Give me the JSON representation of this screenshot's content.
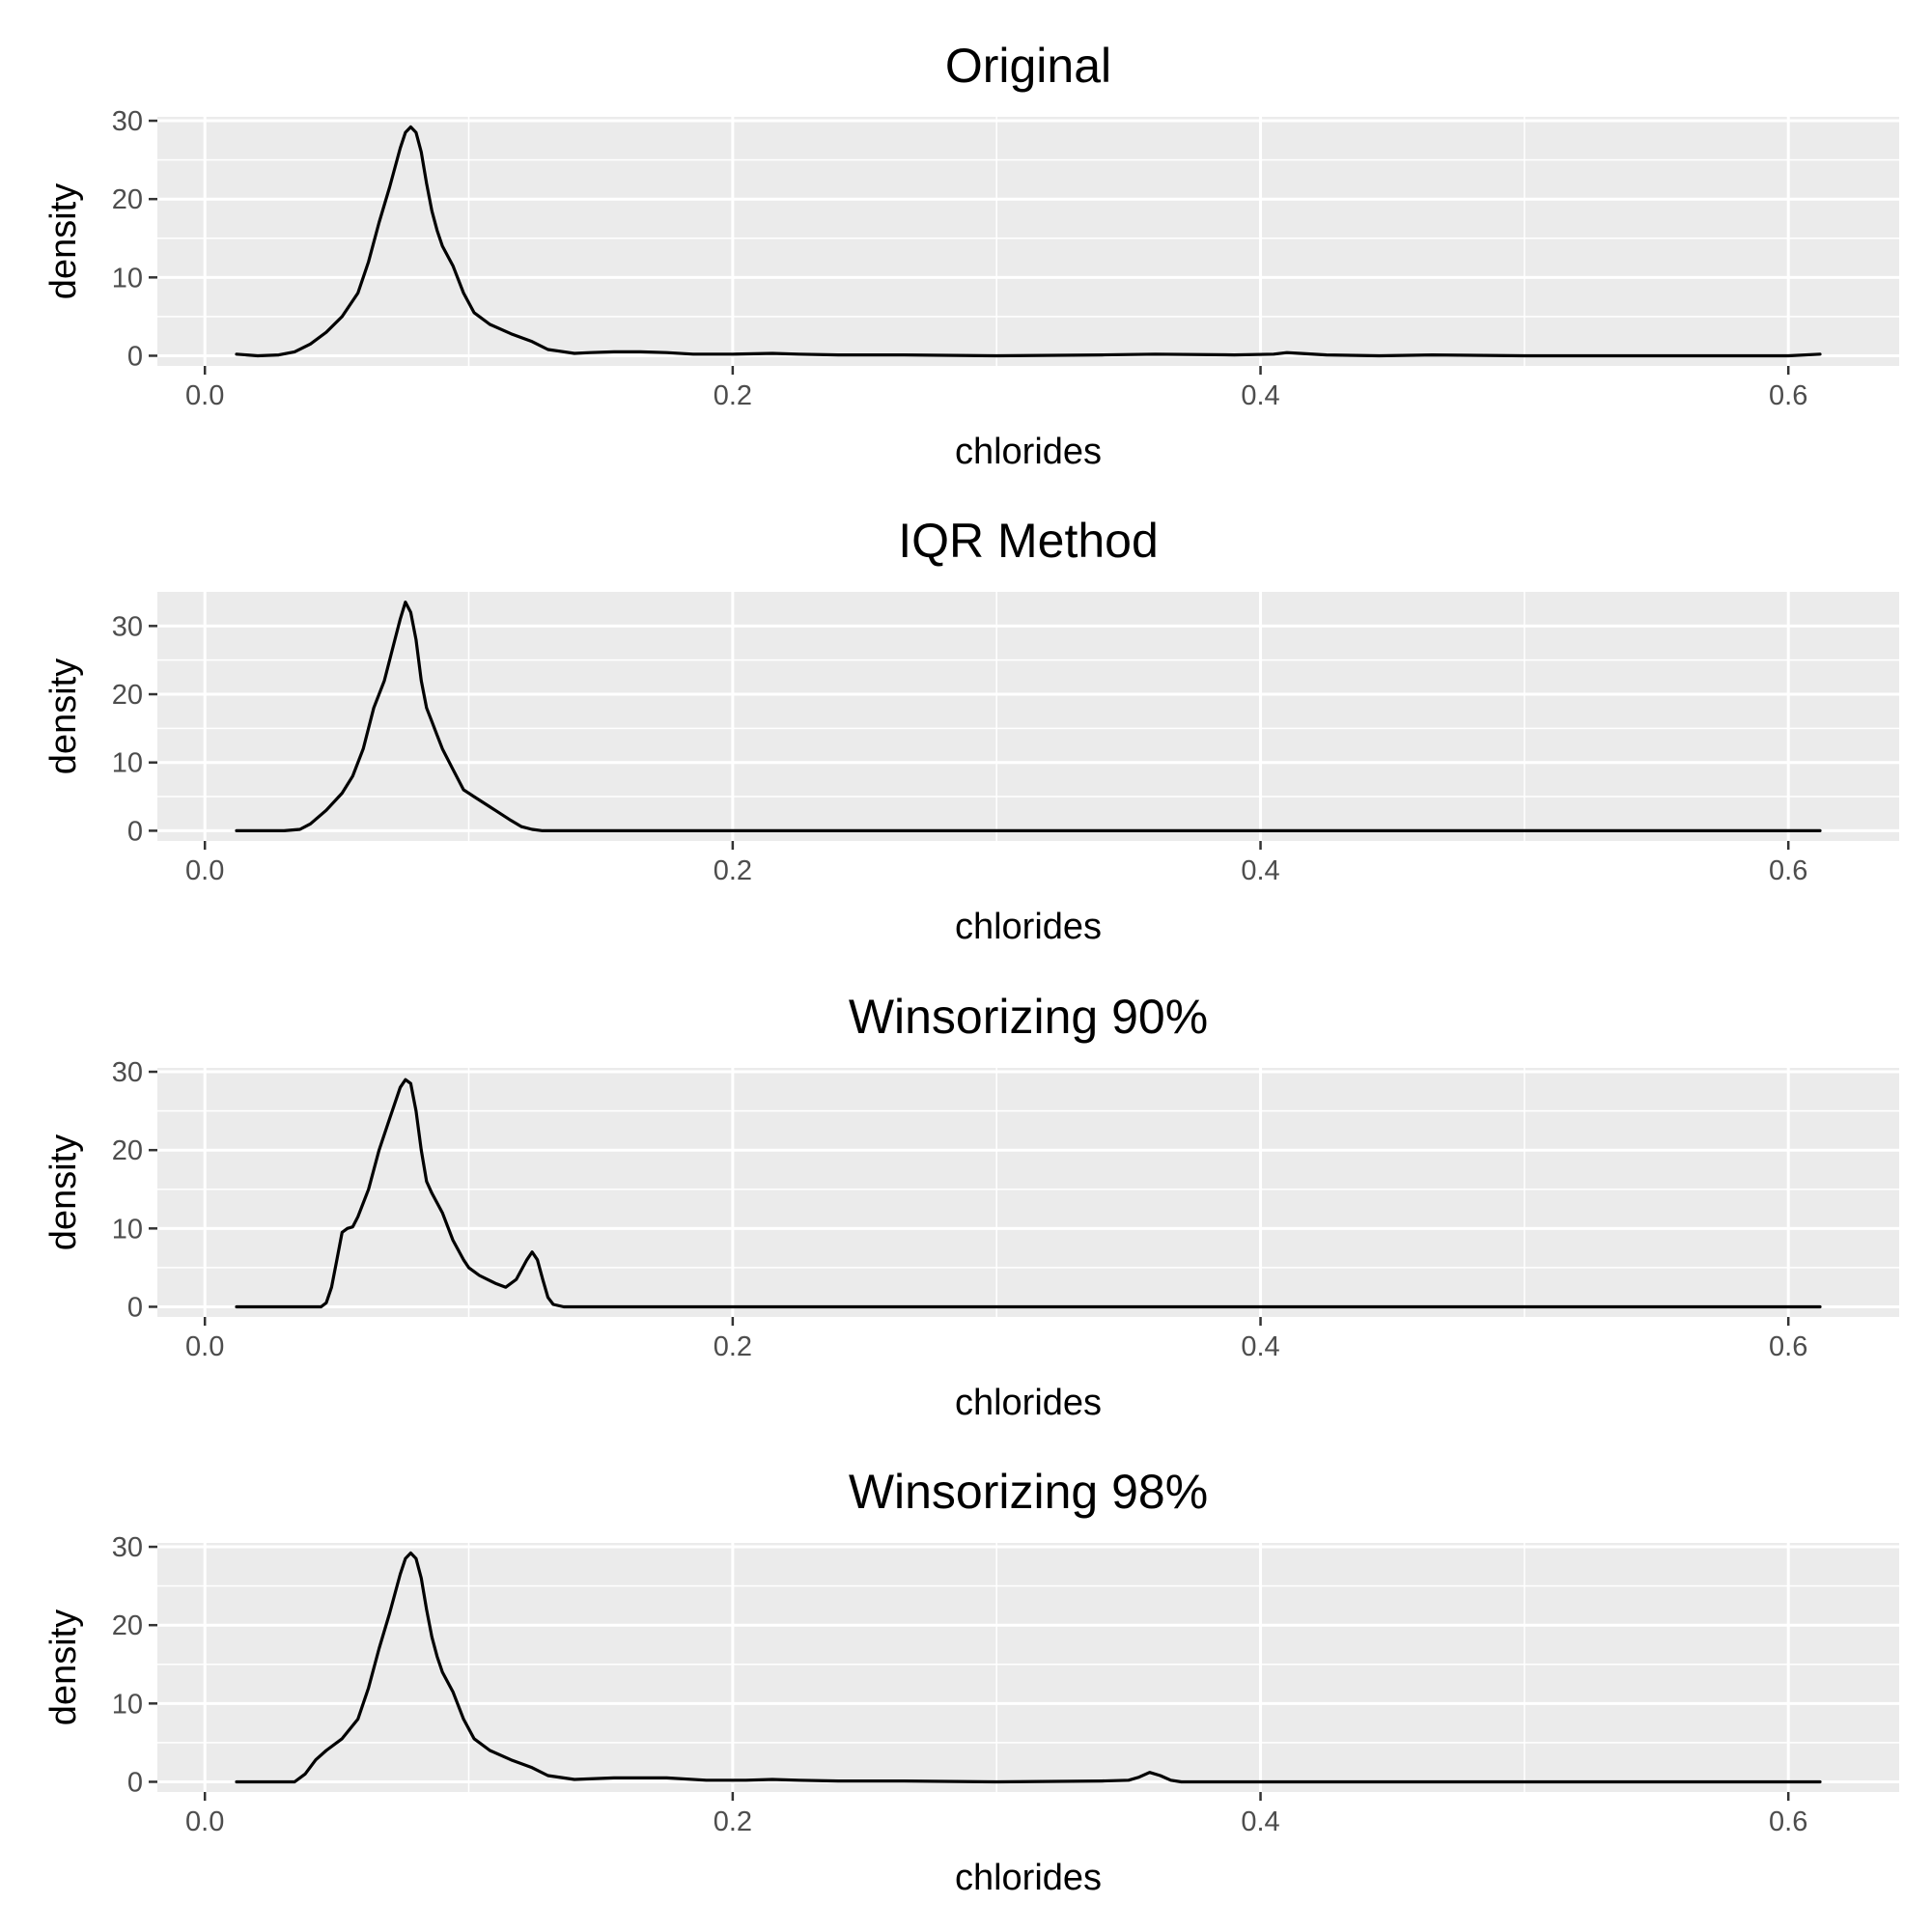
{
  "chart_data": [
    {
      "type": "line",
      "title": "Original",
      "xlabel": "chlorides",
      "ylabel": "density",
      "xlim": [
        -0.018,
        0.642
      ],
      "ylim": [
        -1.3,
        30.5
      ],
      "xticks": [
        0.0,
        0.2,
        0.4,
        0.6
      ],
      "xtick_labels": [
        "0.0",
        "0.2",
        "0.4",
        "0.6"
      ],
      "yticks": [
        0,
        10,
        20,
        30
      ],
      "ytick_labels": [
        "0",
        "10",
        "20",
        "30"
      ],
      "grid": true,
      "series": [
        {
          "x": [
            0.012,
            0.02,
            0.028,
            0.034,
            0.04,
            0.046,
            0.052,
            0.058,
            0.062,
            0.066,
            0.07,
            0.074,
            0.076,
            0.078,
            0.08,
            0.082,
            0.084,
            0.086,
            0.088,
            0.09,
            0.094,
            0.098,
            0.102,
            0.108,
            0.116,
            0.124,
            0.13,
            0.134,
            0.14,
            0.146,
            0.155,
            0.165,
            0.175,
            0.185,
            0.2,
            0.215,
            0.225,
            0.24,
            0.265,
            0.3,
            0.34,
            0.36,
            0.39,
            0.405,
            0.41,
            0.415,
            0.425,
            0.445,
            0.465,
            0.5,
            0.55,
            0.6,
            0.612
          ],
          "y": [
            0.2,
            0.0,
            0.1,
            0.5,
            1.5,
            3.0,
            5.0,
            8.0,
            12.0,
            17.0,
            21.5,
            26.5,
            28.5,
            29.2,
            28.5,
            26.0,
            22.0,
            18.5,
            16.0,
            14.0,
            11.5,
            8.0,
            5.5,
            4.0,
            2.8,
            1.8,
            0.8,
            0.6,
            0.3,
            0.4,
            0.5,
            0.5,
            0.4,
            0.2,
            0.2,
            0.3,
            0.2,
            0.1,
            0.1,
            0.0,
            0.1,
            0.2,
            0.1,
            0.2,
            0.4,
            0.3,
            0.1,
            0.0,
            0.1,
            0.0,
            0.0,
            0.0,
            0.2
          ]
        }
      ]
    },
    {
      "type": "line",
      "title": "IQR Method",
      "xlabel": "chlorides",
      "ylabel": "density",
      "xlim": [
        -0.018,
        0.642
      ],
      "ylim": [
        -1.5,
        35.0
      ],
      "xticks": [
        0.0,
        0.2,
        0.4,
        0.6
      ],
      "xtick_labels": [
        "0.0",
        "0.2",
        "0.4",
        "0.6"
      ],
      "yticks": [
        0,
        10,
        20,
        30
      ],
      "ytick_labels": [
        "0",
        "10",
        "20",
        "30"
      ],
      "grid": true,
      "series": [
        {
          "x": [
            0.012,
            0.03,
            0.036,
            0.04,
            0.046,
            0.052,
            0.056,
            0.06,
            0.064,
            0.068,
            0.072,
            0.074,
            0.076,
            0.078,
            0.08,
            0.082,
            0.084,
            0.086,
            0.088,
            0.09,
            0.094,
            0.098,
            0.1,
            0.102,
            0.106,
            0.11,
            0.116,
            0.12,
            0.124,
            0.128,
            0.14,
            0.612
          ],
          "y": [
            0.0,
            0.0,
            0.2,
            1.0,
            3.0,
            5.5,
            8.0,
            12.0,
            18.0,
            22.0,
            28.0,
            31.0,
            33.5,
            32.0,
            28.0,
            22.0,
            18.0,
            16.0,
            14.0,
            12.0,
            9.0,
            6.0,
            5.5,
            5.0,
            4.0,
            3.0,
            1.5,
            0.6,
            0.2,
            0.0,
            0.0,
            0.0
          ]
        }
      ]
    },
    {
      "type": "line",
      "title": "Winsorizing 90%",
      "xlabel": "chlorides",
      "ylabel": "density",
      "xlim": [
        -0.018,
        0.642
      ],
      "ylim": [
        -1.3,
        30.5
      ],
      "xticks": [
        0.0,
        0.2,
        0.4,
        0.6
      ],
      "xtick_labels": [
        "0.0",
        "0.2",
        "0.4",
        "0.6"
      ],
      "yticks": [
        0,
        10,
        20,
        30
      ],
      "ytick_labels": [
        "0",
        "10",
        "20",
        "30"
      ],
      "grid": true,
      "series": [
        {
          "x": [
            0.012,
            0.044,
            0.046,
            0.048,
            0.05,
            0.052,
            0.054,
            0.056,
            0.058,
            0.062,
            0.066,
            0.07,
            0.074,
            0.076,
            0.078,
            0.08,
            0.082,
            0.084,
            0.086,
            0.09,
            0.094,
            0.098,
            0.1,
            0.104,
            0.11,
            0.114,
            0.118,
            0.122,
            0.124,
            0.126,
            0.128,
            0.13,
            0.132,
            0.136,
            0.14,
            0.612
          ],
          "y": [
            0.0,
            0.0,
            0.5,
            2.5,
            6.0,
            9.5,
            10.0,
            10.2,
            11.5,
            15.0,
            20.0,
            24.0,
            28.0,
            29.0,
            28.5,
            25.0,
            20.0,
            16.0,
            14.5,
            12.0,
            8.5,
            6.0,
            5.0,
            4.0,
            3.0,
            2.5,
            3.5,
            6.0,
            7.0,
            6.0,
            3.5,
            1.2,
            0.3,
            0.0,
            0.0,
            0.0
          ]
        }
      ]
    },
    {
      "type": "line",
      "title": "Winsorizing 98%",
      "xlabel": "chlorides",
      "ylabel": "density",
      "xlim": [
        -0.018,
        0.642
      ],
      "ylim": [
        -1.3,
        30.5
      ],
      "xticks": [
        0.0,
        0.2,
        0.4,
        0.6
      ],
      "xtick_labels": [
        "0.0",
        "0.2",
        "0.4",
        "0.6"
      ],
      "yticks": [
        0,
        10,
        20,
        30
      ],
      "ytick_labels": [
        "0",
        "10",
        "20",
        "30"
      ],
      "grid": true,
      "series": [
        {
          "x": [
            0.012,
            0.034,
            0.038,
            0.042,
            0.046,
            0.052,
            0.058,
            0.062,
            0.066,
            0.07,
            0.074,
            0.076,
            0.078,
            0.08,
            0.082,
            0.084,
            0.086,
            0.088,
            0.09,
            0.094,
            0.098,
            0.102,
            0.108,
            0.116,
            0.124,
            0.13,
            0.14,
            0.155,
            0.175,
            0.19,
            0.205,
            0.215,
            0.225,
            0.24,
            0.265,
            0.3,
            0.34,
            0.35,
            0.354,
            0.358,
            0.362,
            0.366,
            0.37,
            0.4,
            0.612
          ],
          "y": [
            0.0,
            0.0,
            1.0,
            2.8,
            4.0,
            5.5,
            8.0,
            12.0,
            17.0,
            21.5,
            26.5,
            28.5,
            29.2,
            28.5,
            26.0,
            22.0,
            18.5,
            16.0,
            14.0,
            11.5,
            8.0,
            5.5,
            4.0,
            2.8,
            1.8,
            0.8,
            0.3,
            0.5,
            0.5,
            0.2,
            0.2,
            0.3,
            0.2,
            0.1,
            0.1,
            0.0,
            0.1,
            0.2,
            0.6,
            1.2,
            0.8,
            0.2,
            0.0,
            0.0,
            0.0
          ]
        }
      ]
    }
  ]
}
